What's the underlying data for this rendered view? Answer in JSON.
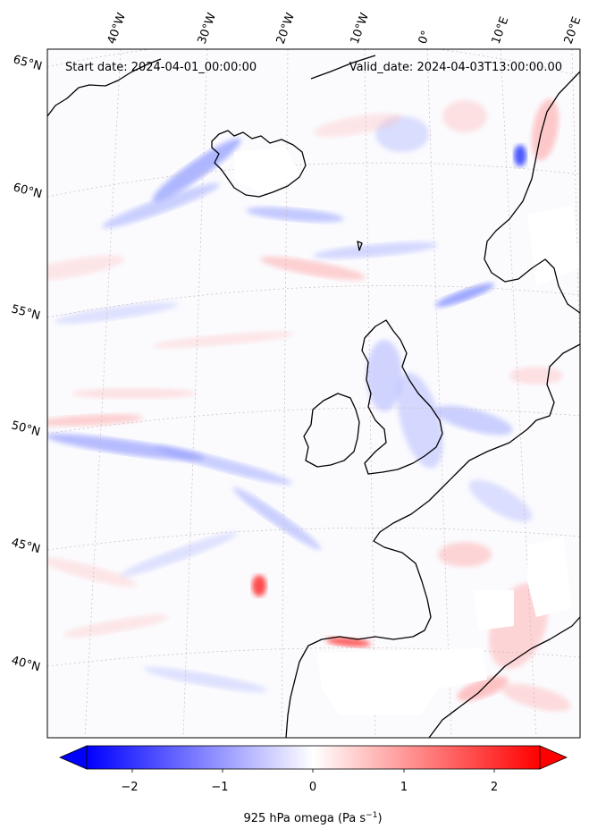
{
  "map": {
    "start_date": "Start date: 2024-04-01_00:00:00",
    "valid_date": "Valid_date: 2024-04-03T13:00:00.00",
    "top_ticks": [
      "40°W",
      "30°W",
      "20°W",
      "10°W",
      "0°",
      "10°E",
      "20°E"
    ],
    "left_ticks": [
      "65°N",
      "60°N",
      "55°N",
      "50°N",
      "45°N",
      "40°N"
    ],
    "colors": {
      "ocean_bg": "#fbfbfe",
      "coast": "#000000",
      "grid": "#c9b8b8",
      "neg": "#0000ff",
      "pos": "#ff0000"
    }
  },
  "colorbar": {
    "ticks": [
      "−2",
      "−1",
      "0",
      "1",
      "2"
    ],
    "label": "925 hPa omega (Pa s",
    "label_sup": "−1",
    "label_tail": ")"
  }
}
